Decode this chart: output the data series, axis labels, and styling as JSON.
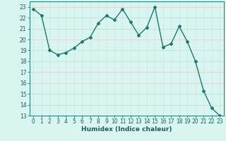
{
  "x": [
    0,
    1,
    2,
    3,
    4,
    5,
    6,
    7,
    8,
    9,
    10,
    11,
    12,
    13,
    14,
    15,
    16,
    17,
    18,
    19,
    20,
    21,
    22,
    23
  ],
  "y": [
    22.8,
    22.2,
    19.0,
    18.6,
    18.8,
    19.2,
    19.8,
    20.2,
    21.5,
    22.2,
    21.8,
    22.8,
    21.6,
    20.4,
    21.1,
    23.0,
    19.3,
    19.6,
    21.2,
    19.8,
    18.0,
    15.3,
    13.7,
    13.0
  ],
  "line_color": "#1a7a6e",
  "marker": "D",
  "marker_size": 2.0,
  "bg_color": "#d8f5f0",
  "grid_color_v": "#c8e8e2",
  "grid_color_h": "#e8c8c8",
  "xlabel": "Humidex (Indice chaleur)",
  "ylim": [
    13,
    23.5
  ],
  "xlim": [
    -0.5,
    23.5
  ],
  "yticks": [
    13,
    14,
    15,
    16,
    17,
    18,
    19,
    20,
    21,
    22,
    23
  ],
  "xticks": [
    0,
    1,
    2,
    3,
    4,
    5,
    6,
    7,
    8,
    9,
    10,
    11,
    12,
    13,
    14,
    15,
    16,
    17,
    18,
    19,
    20,
    21,
    22,
    23
  ],
  "tick_color": "#1a5f5a",
  "label_fontsize": 6.5,
  "tick_fontsize": 5.5,
  "spine_color": "#1a7a6e",
  "grid_linewidth": 0.5,
  "line_width": 1.0
}
